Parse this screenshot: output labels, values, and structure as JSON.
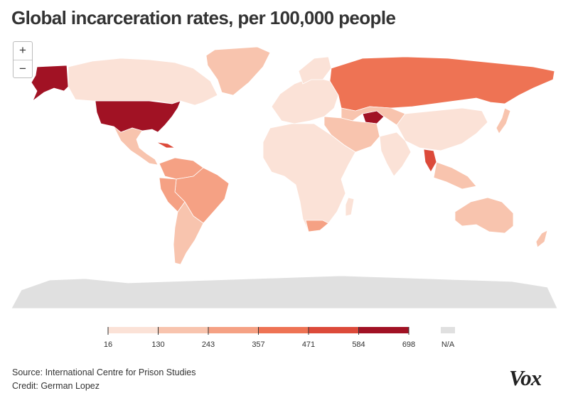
{
  "title": "Global incarceration rates, per 100,000 people",
  "zoom": {
    "in": "+",
    "out": "−"
  },
  "legend": {
    "ticks": [
      "16",
      "130",
      "243",
      "357",
      "471",
      "584",
      "698"
    ],
    "colors": [
      "#fbe2d7",
      "#f8c4ae",
      "#f5a184",
      "#ee7354",
      "#dc4a3a",
      "#a11224"
    ],
    "na_label": "N/A",
    "na_color": "#e0e0e0"
  },
  "colors": {
    "land_default": "#fce8de",
    "antarctica": "#e0e0e0",
    "border": "#ffffff"
  },
  "regions": [
    {
      "name": "Canada",
      "level": 0
    },
    {
      "name": "United States",
      "level": 5
    },
    {
      "name": "Alaska",
      "level": 5
    },
    {
      "name": "Greenland",
      "level": 1
    },
    {
      "name": "Mexico",
      "level": 1
    },
    {
      "name": "Cuba",
      "level": 4
    },
    {
      "name": "Brazil",
      "level": 2
    },
    {
      "name": "Russia",
      "level": 3
    },
    {
      "name": "Turkmenistan",
      "level": 5
    },
    {
      "name": "Thailand",
      "level": 4
    },
    {
      "name": "South Africa",
      "level": 2
    },
    {
      "name": "Australia",
      "level": 1
    },
    {
      "name": "Antarctica",
      "level": -1
    }
  ],
  "footer": {
    "source_label": "Source:",
    "source_value": "International Centre for Prison Studies",
    "credit_label": "Credit:",
    "credit_value": "German Lopez"
  },
  "logo": "Vox"
}
